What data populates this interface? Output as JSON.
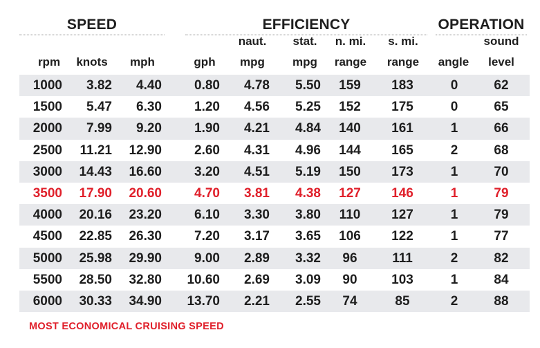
{
  "groups": {
    "speed": "SPEED",
    "efficiency": "EFFICIENCY",
    "operation": "OPERATION"
  },
  "headers": {
    "rpm": [
      "",
      "rpm"
    ],
    "knots": [
      "",
      "knots"
    ],
    "mph": [
      "",
      "mph"
    ],
    "gph": [
      "",
      "gph"
    ],
    "naut_mpg": [
      "naut.",
      "mpg"
    ],
    "stat_mpg": [
      "stat.",
      "mpg"
    ],
    "n_range": [
      "n. mi.",
      "range"
    ],
    "s_range": [
      "s. mi.",
      "range"
    ],
    "angle": [
      "",
      "angle"
    ],
    "sound": [
      "sound",
      "level"
    ]
  },
  "rows": [
    [
      "1000",
      "3.82",
      "4.40",
      "0.80",
      "4.78",
      "5.50",
      "159",
      "183",
      "0",
      "62"
    ],
    [
      "1500",
      "5.47",
      "6.30",
      "1.20",
      "4.56",
      "5.25",
      "152",
      "175",
      "0",
      "65"
    ],
    [
      "2000",
      "7.99",
      "9.20",
      "1.90",
      "4.21",
      "4.84",
      "140",
      "161",
      "1",
      "66"
    ],
    [
      "2500",
      "11.21",
      "12.90",
      "2.60",
      "4.31",
      "4.96",
      "144",
      "165",
      "2",
      "68"
    ],
    [
      "3000",
      "14.43",
      "16.60",
      "3.20",
      "4.51",
      "5.19",
      "150",
      "173",
      "1",
      "70"
    ],
    [
      "3500",
      "17.90",
      "20.60",
      "4.70",
      "3.81",
      "4.38",
      "127",
      "146",
      "1",
      "79"
    ],
    [
      "4000",
      "20.16",
      "23.20",
      "6.10",
      "3.30",
      "3.80",
      "110",
      "127",
      "1",
      "79"
    ],
    [
      "4500",
      "22.85",
      "26.30",
      "7.20",
      "3.17",
      "3.65",
      "106",
      "122",
      "1",
      "77"
    ],
    [
      "5000",
      "25.98",
      "29.90",
      "9.00",
      "2.89",
      "3.32",
      "96",
      "111",
      "2",
      "82"
    ],
    [
      "5500",
      "28.50",
      "32.80",
      "10.60",
      "2.69",
      "3.09",
      "90",
      "103",
      "1",
      "84"
    ],
    [
      "6000",
      "30.33",
      "34.90",
      "13.70",
      "2.21",
      "2.55",
      "74",
      "85",
      "2",
      "88"
    ]
  ],
  "highlight_row": 5,
  "highlight_color": "#e0202b",
  "stripe_color": "#e8e9ec",
  "footnote": "MOST ECONOMICAL CRUISING SPEED"
}
